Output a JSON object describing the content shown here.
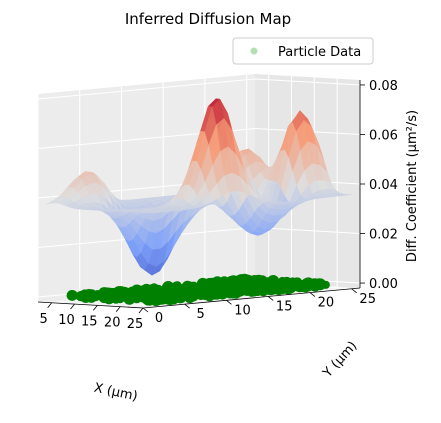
{
  "chart_data": {
    "type": "surface3d",
    "title": "Inferred Diffusion Map",
    "xlabel": "X (μm)",
    "ylabel": "Y (μm)",
    "zlabel": "Diff. Coefficient (μm²/s)",
    "xlim": [
      2,
      25
    ],
    "ylim": [
      0,
      26
    ],
    "zlim": [
      -0.002,
      0.082
    ],
    "x_ticks": [
      5,
      10,
      15,
      20,
      25
    ],
    "y_ticks": [
      0,
      5,
      10,
      15,
      20,
      25
    ],
    "z_ticks": [
      0.0,
      0.02,
      0.04,
      0.06,
      0.08
    ],
    "x_tick_labels": [
      "5",
      "10",
      "15",
      "20",
      "25"
    ],
    "y_tick_labels": [
      "0",
      "5",
      "10",
      "15",
      "20",
      "25"
    ],
    "z_tick_labels": [
      "0.00",
      "0.02",
      "0.04",
      "0.06",
      "0.08"
    ],
    "grid": true,
    "legend": {
      "placement": "top-right",
      "entries": [
        "Particle Data"
      ]
    },
    "colormap": "coolwarm",
    "surface": {
      "type": "surface",
      "x_range": [
        2,
        25
      ],
      "y_range": [
        1,
        25
      ],
      "baseline": 0.036,
      "bumps": [
        {
          "x": 11,
          "y": 20,
          "z": 0.055
        },
        {
          "x": 17,
          "y": 23,
          "z": 0.072
        },
        {
          "x": 21,
          "y": 11,
          "z": 0.08
        },
        {
          "x": 4,
          "y": 5,
          "z": 0.05
        },
        {
          "x": 13,
          "y": 11,
          "z": 0.052
        },
        {
          "x": 8,
          "y": 12,
          "z": 0.044
        }
      ],
      "wells": [
        {
          "x": 10,
          "y": 10,
          "z": 0.0
        },
        {
          "x": 18,
          "y": 18,
          "z": 0.02
        }
      ]
    },
    "series": [
      {
        "name": "Particle Data",
        "type": "scatter",
        "color": "#008000",
        "legend_color": "#b3e0b3",
        "region": {
          "x_range": [
            4,
            24
          ],
          "y_range": [
            2,
            24
          ],
          "z": 0.0
        }
      }
    ]
  }
}
